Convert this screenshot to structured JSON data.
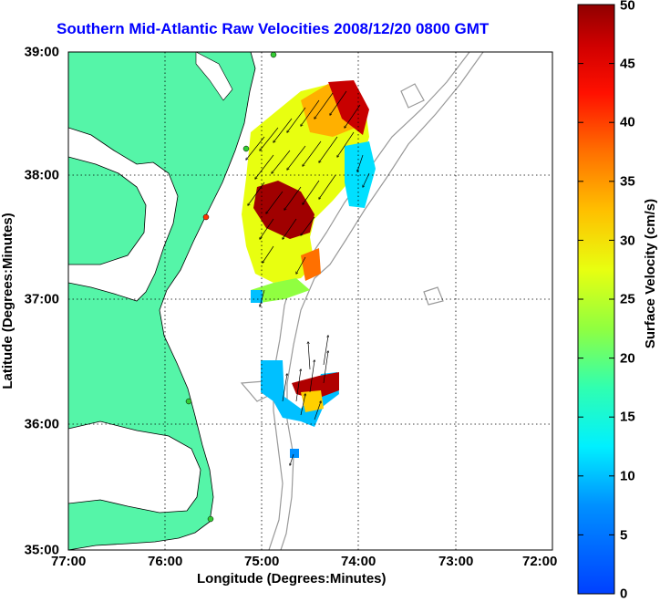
{
  "title": "Southern Mid-Atlantic Raw Velocities 2008/12/20 0800 GMT",
  "xlabel": "Longitude (Degrees:Minutes)",
  "ylabel": "Latitude (Degrees:Minutes)",
  "colorbar_label": "Surface Velocity (cm/s)",
  "x_ticks": [
    "77:00",
    "76:00",
    "75:00",
    "74:00",
    "73:00",
    "72:00"
  ],
  "y_ticks": [
    "39:00",
    "38:00",
    "37:00",
    "36:00",
    "35:00"
  ],
  "colorbar_ticks": [
    "50",
    "45",
    "40",
    "35",
    "30",
    "25",
    "20",
    "15",
    "10",
    "5",
    "0"
  ],
  "colors": {
    "land": "#55f5a8",
    "title": "#0000ff",
    "bathymetry": "#999999"
  },
  "grid": "dotted"
}
